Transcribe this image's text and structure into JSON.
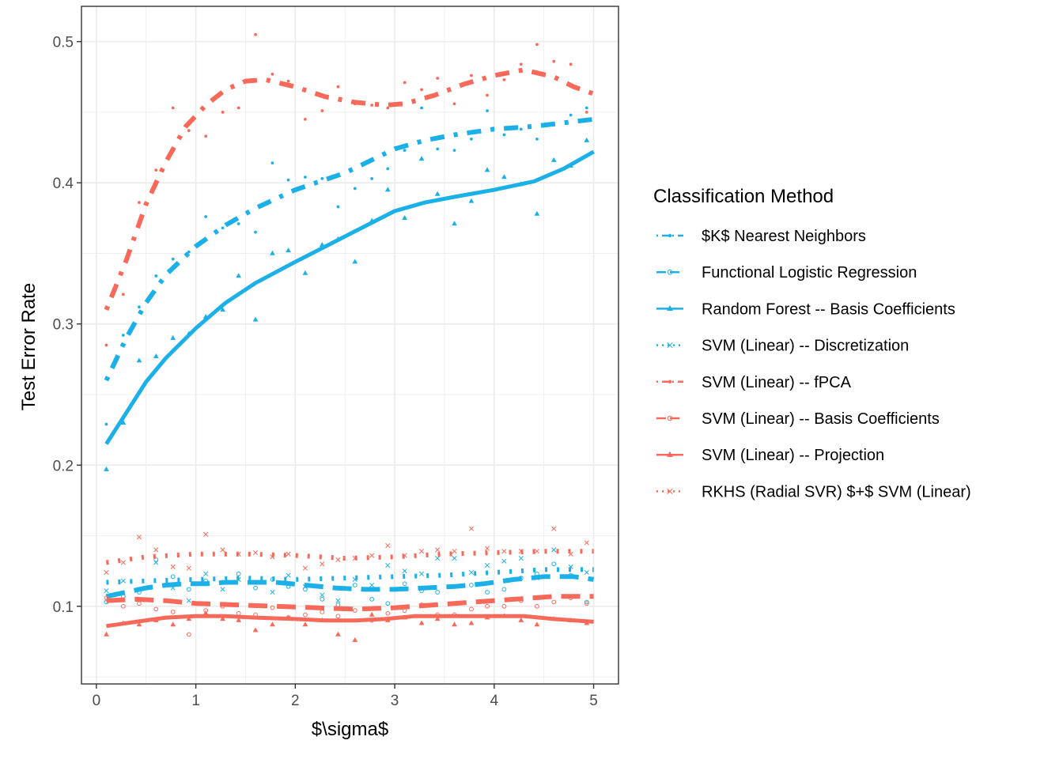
{
  "colors": {
    "blue": "#1CB0E8",
    "red": "#F8695A",
    "grid": "#EBEBEB",
    "panel_border": "#333333"
  },
  "chart_data": {
    "type": "line",
    "xlabel": "$\\sigma$",
    "ylabel": "Test Error Rate",
    "xlim": [
      -0.15,
      5.25
    ],
    "ylim": [
      0.045,
      0.525
    ],
    "x_ticks": [
      0,
      1,
      2,
      3,
      4,
      5
    ],
    "y_ticks": [
      0.1,
      0.2,
      0.3,
      0.4,
      0.5
    ],
    "x_tick_labels": [
      "0",
      "1",
      "2",
      "3",
      "4",
      "5"
    ],
    "y_tick_labels": [
      "0.1",
      "0.2",
      "0.3",
      "0.4",
      "0.5"
    ],
    "grid": true,
    "legend": {
      "title": "Classification Method",
      "position": "right",
      "entries": [
        "$K$ Nearest Neighbors",
        "Functional Logistic Regression",
        "Random Forest -- Basis Coefficients",
        "SVM (Linear) -- Discretization",
        "SVM (Linear) -- fPCA",
        "SVM (Linear) -- Basis Coefficients",
        "SVM (Linear) -- Projection",
        "RKHS (Radial SVR) $+$ SVM (Linear)"
      ]
    },
    "series": [
      {
        "name": "$K$ Nearest Neighbors",
        "color": "blue",
        "marker": "dot",
        "linestyle": "dotdash",
        "x": [
          0.1,
          0.3,
          0.5,
          0.7,
          1.0,
          1.3,
          1.6,
          2.0,
          2.5,
          3.0,
          3.3,
          3.6,
          4.0,
          4.4,
          5.0
        ],
        "y": [
          0.26,
          0.29,
          0.315,
          0.335,
          0.355,
          0.37,
          0.382,
          0.395,
          0.407,
          0.424,
          0.43,
          0.434,
          0.438,
          0.44,
          0.445
        ],
        "points_x": [
          0.1,
          0.27,
          0.43,
          0.6,
          0.77,
          0.93,
          1.1,
          1.27,
          1.43,
          1.6,
          1.77,
          1.93,
          2.1,
          2.27,
          2.43,
          2.6,
          2.77,
          2.93,
          3.1,
          3.27,
          3.43,
          3.6,
          3.77,
          3.93,
          4.1,
          4.27,
          4.43,
          4.6,
          4.77,
          4.93
        ],
        "points_y": [
          0.229,
          0.292,
          0.312,
          0.334,
          0.346,
          0.351,
          0.376,
          0.368,
          0.371,
          0.365,
          0.414,
          0.402,
          0.404,
          0.403,
          0.383,
          0.396,
          0.403,
          0.41,
          0.423,
          0.453,
          0.424,
          0.423,
          0.431,
          0.451,
          0.434,
          0.438,
          0.431,
          0.441,
          0.448,
          0.453
        ]
      },
      {
        "name": "Functional Logistic Regression",
        "color": "blue",
        "marker": "circle-open",
        "linestyle": "longdash",
        "x": [
          0.1,
          0.3,
          0.5,
          0.7,
          0.9,
          1.1,
          1.3,
          1.5,
          1.8,
          2.1,
          2.4,
          2.7,
          3.0,
          3.3,
          3.6,
          3.9,
          4.2,
          4.5,
          4.8,
          5.0
        ],
        "y": [
          0.107,
          0.11,
          0.113,
          0.115,
          0.116,
          0.116,
          0.117,
          0.117,
          0.117,
          0.115,
          0.113,
          0.112,
          0.112,
          0.113,
          0.114,
          0.116,
          0.119,
          0.121,
          0.121,
          0.119
        ],
        "points_x": [
          0.1,
          0.27,
          0.43,
          0.6,
          0.77,
          0.93,
          1.1,
          1.27,
          1.43,
          1.6,
          1.77,
          1.93,
          2.1,
          2.27,
          2.43,
          2.6,
          2.77,
          2.93,
          3.1,
          3.27,
          3.43,
          3.6,
          3.77,
          3.93,
          4.1,
          4.27,
          4.43,
          4.6,
          4.77,
          4.93
        ],
        "points_y": [
          0.103,
          0.107,
          0.11,
          0.133,
          0.121,
          0.112,
          0.118,
          0.117,
          0.123,
          0.113,
          0.119,
          0.114,
          0.112,
          0.105,
          0.101,
          0.115,
          0.105,
          0.102,
          0.116,
          0.111,
          0.11,
          0.114,
          0.115,
          0.11,
          0.112,
          0.12,
          0.123,
          0.13,
          0.122,
          0.103
        ]
      },
      {
        "name": "Random Forest -- Basis Coefficients",
        "color": "blue",
        "marker": "triangle",
        "linestyle": "solid",
        "x": [
          0.1,
          0.3,
          0.5,
          0.7,
          1.0,
          1.3,
          1.6,
          2.0,
          2.5,
          3.0,
          3.3,
          3.6,
          4.0,
          4.4,
          4.7,
          5.0
        ],
        "y": [
          0.215,
          0.237,
          0.259,
          0.276,
          0.297,
          0.315,
          0.329,
          0.344,
          0.362,
          0.38,
          0.386,
          0.39,
          0.395,
          0.401,
          0.41,
          0.422
        ],
        "points_x": [
          0.1,
          0.27,
          0.43,
          0.6,
          0.77,
          0.93,
          1.1,
          1.27,
          1.43,
          1.6,
          1.77,
          1.93,
          2.1,
          2.27,
          2.43,
          2.6,
          2.77,
          2.93,
          3.1,
          3.27,
          3.43,
          3.6,
          3.77,
          3.93,
          4.1,
          4.27,
          4.43,
          4.6,
          4.77,
          4.93
        ],
        "points_y": [
          0.197,
          0.23,
          0.274,
          0.277,
          0.29,
          0.293,
          0.305,
          0.31,
          0.334,
          0.303,
          0.35,
          0.352,
          0.336,
          0.356,
          0.36,
          0.344,
          0.373,
          0.395,
          0.375,
          0.417,
          0.392,
          0.371,
          0.387,
          0.409,
          0.404,
          0.399,
          0.378,
          0.416,
          0.412,
          0.43
        ]
      },
      {
        "name": "SVM (Linear) -- Discretization",
        "color": "blue",
        "marker": "x",
        "linestyle": "dotted",
        "x": [
          0.1,
          0.5,
          1.0,
          1.5,
          2.0,
          2.5,
          3.0,
          3.5,
          4.0,
          4.5,
          5.0
        ],
        "y": [
          0.117,
          0.118,
          0.119,
          0.12,
          0.119,
          0.12,
          0.121,
          0.122,
          0.124,
          0.126,
          0.126
        ],
        "points_x": [
          0.1,
          0.27,
          0.43,
          0.6,
          0.77,
          0.93,
          1.1,
          1.27,
          1.43,
          1.6,
          1.77,
          1.93,
          2.1,
          2.27,
          2.43,
          2.6,
          2.77,
          2.93,
          3.1,
          3.27,
          3.43,
          3.6,
          3.77,
          3.93,
          4.1,
          4.27,
          4.43,
          4.6,
          4.77,
          4.93
        ],
        "points_y": [
          0.111,
          0.118,
          0.112,
          0.131,
          0.113,
          0.104,
          0.123,
          0.112,
          0.119,
          0.117,
          0.11,
          0.122,
          0.114,
          0.108,
          0.104,
          0.119,
          0.115,
          0.129,
          0.125,
          0.123,
          0.134,
          0.134,
          0.124,
          0.129,
          0.132,
          0.134,
          0.12,
          0.14,
          0.128,
          0.124
        ]
      },
      {
        "name": "SVM (Linear) -- fPCA",
        "color": "red",
        "marker": "dot",
        "linestyle": "dotdash",
        "x": [
          0.1,
          0.3,
          0.5,
          0.7,
          0.9,
          1.1,
          1.3,
          1.5,
          1.7,
          2.0,
          2.3,
          2.6,
          2.9,
          3.1,
          3.4,
          3.7,
          4.0,
          4.3,
          4.6,
          4.8,
          5.0
        ],
        "y": [
          0.31,
          0.345,
          0.385,
          0.415,
          0.44,
          0.455,
          0.466,
          0.472,
          0.473,
          0.468,
          0.461,
          0.457,
          0.455,
          0.456,
          0.462,
          0.47,
          0.476,
          0.48,
          0.475,
          0.468,
          0.463
        ],
        "points_x": [
          0.1,
          0.27,
          0.43,
          0.6,
          0.77,
          0.93,
          1.1,
          1.27,
          1.43,
          1.6,
          1.77,
          1.93,
          2.1,
          2.27,
          2.43,
          2.6,
          2.77,
          2.93,
          3.1,
          3.27,
          3.43,
          3.6,
          3.77,
          3.93,
          4.1,
          4.27,
          4.43,
          4.6,
          4.77,
          4.93
        ],
        "points_y": [
          0.285,
          0.321,
          0.386,
          0.409,
          0.453,
          0.437,
          0.433,
          0.45,
          0.453,
          0.505,
          0.477,
          0.472,
          0.445,
          0.451,
          0.468,
          0.456,
          0.455,
          0.453,
          0.471,
          0.466,
          0.474,
          0.456,
          0.476,
          0.462,
          0.473,
          0.484,
          0.498,
          0.486,
          0.484,
          0.45
        ]
      },
      {
        "name": "SVM (Linear) -- Basis Coefficients",
        "color": "red",
        "marker": "circle-open",
        "linestyle": "longdash",
        "x": [
          0.1,
          0.4,
          0.7,
          1.0,
          1.4,
          1.8,
          2.2,
          2.6,
          3.0,
          3.4,
          3.8,
          4.2,
          4.6,
          5.0
        ],
        "y": [
          0.104,
          0.105,
          0.104,
          0.102,
          0.101,
          0.1,
          0.099,
          0.098,
          0.099,
          0.101,
          0.103,
          0.105,
          0.107,
          0.107
        ],
        "points_x": [
          0.1,
          0.27,
          0.43,
          0.6,
          0.77,
          0.93,
          1.1,
          1.27,
          1.43,
          1.6,
          1.77,
          1.93,
          2.1,
          2.27,
          2.43,
          2.6,
          2.77,
          2.93,
          3.1,
          3.27,
          3.43,
          3.6,
          3.77,
          3.93,
          4.1,
          4.27,
          4.43,
          4.6,
          4.77,
          4.93
        ],
        "points_y": [
          0.106,
          0.1,
          0.102,
          0.098,
          0.096,
          0.08,
          0.097,
          0.1,
          0.095,
          0.094,
          0.099,
          0.092,
          0.094,
          0.096,
          0.093,
          0.097,
          0.09,
          0.095,
          0.097,
          0.101,
          0.094,
          0.094,
          0.098,
          0.1,
          0.1,
          0.104,
          0.1,
          0.103,
          0.106,
          0.102
        ]
      },
      {
        "name": "SVM (Linear) -- Projection",
        "color": "red",
        "marker": "triangle",
        "linestyle": "solid",
        "x": [
          0.1,
          0.4,
          0.7,
          1.0,
          1.3,
          1.6,
          2.0,
          2.3,
          2.6,
          2.9,
          3.2,
          3.6,
          4.0,
          4.3,
          4.6,
          5.0
        ],
        "y": [
          0.086,
          0.089,
          0.092,
          0.093,
          0.093,
          0.092,
          0.091,
          0.09,
          0.09,
          0.091,
          0.093,
          0.093,
          0.093,
          0.093,
          0.091,
          0.089
        ],
        "points_x": [
          0.1,
          0.27,
          0.43,
          0.6,
          0.77,
          0.93,
          1.1,
          1.27,
          1.43,
          1.6,
          1.77,
          1.93,
          2.1,
          2.27,
          2.43,
          2.6,
          2.77,
          2.93,
          3.1,
          3.27,
          3.43,
          3.6,
          3.77,
          3.93,
          4.1,
          4.27,
          4.43,
          4.6,
          4.77,
          4.93
        ],
        "points_y": [
          0.08,
          0.088,
          0.087,
          0.09,
          0.087,
          0.091,
          0.095,
          0.091,
          0.09,
          0.083,
          0.087,
          0.092,
          0.087,
          0.09,
          0.08,
          0.076,
          0.094,
          0.09,
          0.092,
          0.088,
          0.091,
          0.087,
          0.088,
          0.092,
          0.093,
          0.09,
          0.087,
          0.091,
          0.09,
          0.088
        ]
      },
      {
        "name": "RKHS (Radial SVR) $+$ SVM (Linear)",
        "color": "red",
        "marker": "x",
        "linestyle": "dotted",
        "x": [
          0.1,
          0.5,
          1.0,
          1.5,
          2.0,
          2.5,
          3.0,
          3.5,
          4.0,
          4.5,
          5.0
        ],
        "y": [
          0.131,
          0.135,
          0.137,
          0.137,
          0.136,
          0.134,
          0.135,
          0.137,
          0.138,
          0.139,
          0.139
        ],
        "points_x": [
          0.1,
          0.27,
          0.43,
          0.6,
          0.77,
          0.93,
          1.1,
          1.27,
          1.43,
          1.6,
          1.77,
          1.93,
          2.1,
          2.27,
          2.43,
          2.6,
          2.77,
          2.93,
          3.1,
          3.27,
          3.43,
          3.6,
          3.77,
          3.93,
          4.1,
          4.27,
          4.43,
          4.6,
          4.77,
          4.93
        ],
        "points_y": [
          0.124,
          0.131,
          0.149,
          0.14,
          0.128,
          0.127,
          0.151,
          0.14,
          0.137,
          0.138,
          0.135,
          0.137,
          0.127,
          0.13,
          0.133,
          0.134,
          0.136,
          0.143,
          0.136,
          0.139,
          0.14,
          0.139,
          0.155,
          0.141,
          0.139,
          0.139,
          0.139,
          0.155,
          0.137,
          0.145
        ]
      }
    ]
  }
}
